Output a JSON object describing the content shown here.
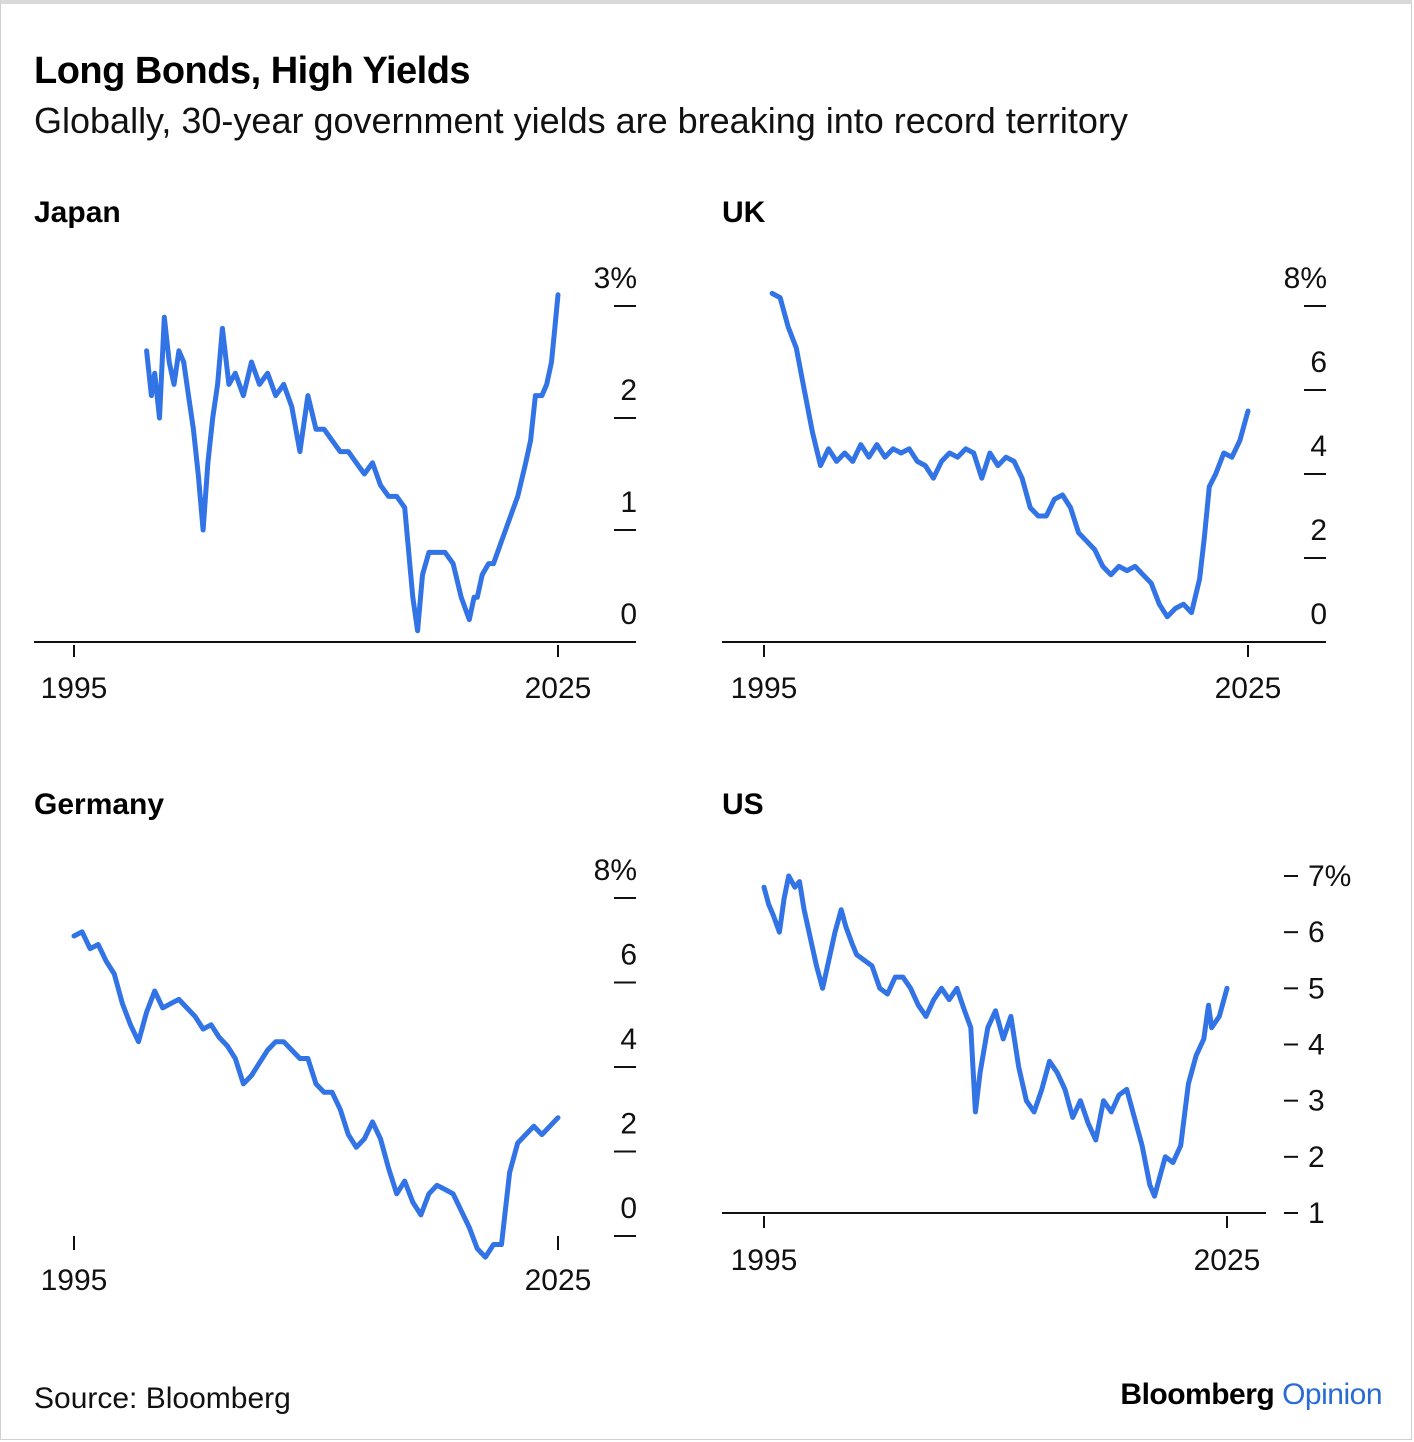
{
  "header": {
    "title": "Long Bonds, High Yields",
    "subtitle": "Globally, 30-year government yields are breaking into record territory"
  },
  "footer": {
    "source": "Source: Bloomberg",
    "brand_main": "Bloomberg",
    "brand_accent": "Opinion"
  },
  "colors": {
    "line": "#3273e6",
    "axis": "#111111",
    "accent": "#2b6bd6"
  },
  "chart_data": [
    {
      "type": "line",
      "title": "Japan",
      "xlabel": "",
      "ylabel": "",
      "xlim": [
        1992.5,
        2030
      ],
      "ylim": [
        0,
        3
      ],
      "x_ticks": [
        1995,
        2025
      ],
      "x_tick_labels": [
        "1995",
        "2025"
      ],
      "y_ticks": [
        0,
        1,
        2,
        3
      ],
      "y_tick_labels": [
        "0",
        "1",
        "2",
        "3%"
      ],
      "unit": "%",
      "series": [
        {
          "name": "Japan 30-year yield",
          "x": [
            1999.5,
            1999.8,
            2000.0,
            2000.3,
            2000.6,
            2000.9,
            2001.2,
            2001.5,
            2001.8,
            2002.1,
            2002.4,
            2002.7,
            2003.0,
            2003.3,
            2003.6,
            2003.9,
            2004.2,
            2004.6,
            2005.0,
            2005.5,
            2006.0,
            2006.5,
            2007.0,
            2007.5,
            2008.0,
            2008.5,
            2009.0,
            2009.5,
            2010.0,
            2010.5,
            2011.0,
            2011.5,
            2012.0,
            2012.5,
            2013.0,
            2013.5,
            2014.0,
            2014.5,
            2015.0,
            2015.5,
            2016.0,
            2016.3,
            2016.6,
            2017.0,
            2017.5,
            2018.0,
            2018.5,
            2019.0,
            2019.5,
            2019.8,
            2020.0,
            2020.3,
            2020.7,
            2021.0,
            2021.5,
            2022.0,
            2022.5,
            2023.0,
            2023.3,
            2023.6,
            2024.0,
            2024.3,
            2024.6,
            2024.8,
            2025.0
          ],
          "values": [
            2.6,
            2.2,
            2.4,
            2.0,
            2.9,
            2.5,
            2.3,
            2.6,
            2.5,
            2.2,
            1.9,
            1.5,
            1.0,
            1.6,
            2.0,
            2.3,
            2.8,
            2.3,
            2.4,
            2.2,
            2.5,
            2.3,
            2.4,
            2.2,
            2.3,
            2.1,
            1.7,
            2.2,
            1.9,
            1.9,
            1.8,
            1.7,
            1.7,
            1.6,
            1.5,
            1.6,
            1.4,
            1.3,
            1.3,
            1.2,
            0.4,
            0.1,
            0.6,
            0.8,
            0.8,
            0.8,
            0.7,
            0.4,
            0.2,
            0.4,
            0.4,
            0.6,
            0.7,
            0.7,
            0.9,
            1.1,
            1.3,
            1.6,
            1.8,
            2.2,
            2.2,
            2.3,
            2.5,
            2.8,
            3.1
          ]
        }
      ]
    },
    {
      "type": "line",
      "title": "UK",
      "xlabel": "",
      "ylabel": "",
      "xlim": [
        1992.5,
        2030
      ],
      "ylim": [
        0,
        8
      ],
      "x_ticks": [
        1995,
        2025
      ],
      "x_tick_labels": [
        "1995",
        "2025"
      ],
      "y_ticks": [
        0,
        2,
        4,
        6,
        8
      ],
      "y_tick_labels": [
        "0",
        "2",
        "4",
        "6",
        "8%"
      ],
      "unit": "%",
      "series": [
        {
          "name": "UK 30-year yield",
          "x": [
            1995.5,
            1996.0,
            1996.5,
            1997.0,
            1997.5,
            1998.0,
            1998.5,
            1999.0,
            1999.5,
            2000.0,
            2000.5,
            2001.0,
            2001.5,
            2002.0,
            2002.5,
            2003.0,
            2003.5,
            2004.0,
            2004.5,
            2005.0,
            2005.5,
            2006.0,
            2006.5,
            2007.0,
            2007.5,
            2008.0,
            2008.5,
            2009.0,
            2009.5,
            2010.0,
            2010.5,
            2011.0,
            2011.5,
            2012.0,
            2012.5,
            2013.0,
            2013.5,
            2014.0,
            2014.5,
            2015.0,
            2015.5,
            2016.0,
            2016.5,
            2017.0,
            2017.5,
            2018.0,
            2018.5,
            2019.0,
            2019.5,
            2020.0,
            2020.5,
            2021.0,
            2021.5,
            2022.0,
            2022.3,
            2022.6,
            2023.0,
            2023.5,
            2024.0,
            2024.5,
            2025.0
          ],
          "values": [
            8.3,
            8.2,
            7.5,
            7.0,
            6.0,
            5.0,
            4.2,
            4.6,
            4.3,
            4.5,
            4.3,
            4.7,
            4.4,
            4.7,
            4.4,
            4.6,
            4.5,
            4.6,
            4.3,
            4.2,
            3.9,
            4.3,
            4.5,
            4.4,
            4.6,
            4.5,
            3.9,
            4.5,
            4.2,
            4.4,
            4.3,
            3.9,
            3.2,
            3.0,
            3.0,
            3.4,
            3.5,
            3.2,
            2.6,
            2.4,
            2.2,
            1.8,
            1.6,
            1.8,
            1.7,
            1.8,
            1.6,
            1.4,
            0.9,
            0.6,
            0.8,
            0.9,
            0.7,
            1.5,
            2.5,
            3.7,
            4.0,
            4.5,
            4.4,
            4.8,
            5.5
          ]
        }
      ]
    },
    {
      "type": "line",
      "title": "Germany",
      "xlabel": "",
      "ylabel": "",
      "xlim": [
        1992.5,
        2030
      ],
      "ylim": [
        -0.7,
        8
      ],
      "x_ticks": [
        1995,
        2025
      ],
      "x_tick_labels": [
        "1995",
        "2025"
      ],
      "y_ticks": [
        0,
        2,
        4,
        6,
        8
      ],
      "y_tick_labels": [
        "0",
        "2",
        "4",
        "6",
        "8%"
      ],
      "unit": "%",
      "series": [
        {
          "name": "Germany 30-year yield",
          "x": [
            1995.0,
            1995.5,
            1996.0,
            1996.5,
            1997.0,
            1997.5,
            1998.0,
            1998.5,
            1999.0,
            1999.5,
            2000.0,
            2000.5,
            2001.0,
            2001.5,
            2002.0,
            2002.5,
            2003.0,
            2003.5,
            2004.0,
            2004.5,
            2005.0,
            2005.5,
            2006.0,
            2006.5,
            2007.0,
            2007.5,
            2008.0,
            2008.5,
            2009.0,
            2009.5,
            2010.0,
            2010.5,
            2011.0,
            2011.5,
            2012.0,
            2012.5,
            2013.0,
            2013.5,
            2014.0,
            2014.5,
            2015.0,
            2015.5,
            2016.0,
            2016.5,
            2017.0,
            2017.5,
            2018.0,
            2018.5,
            2019.0,
            2019.5,
            2020.0,
            2020.5,
            2021.0,
            2021.5,
            2022.0,
            2022.5,
            2023.0,
            2023.5,
            2024.0,
            2024.5,
            2025.0
          ],
          "values": [
            7.1,
            7.2,
            6.8,
            6.9,
            6.5,
            6.2,
            5.5,
            5.0,
            4.6,
            5.3,
            5.8,
            5.4,
            5.5,
            5.6,
            5.4,
            5.2,
            4.9,
            5.0,
            4.7,
            4.5,
            4.2,
            3.6,
            3.8,
            4.1,
            4.4,
            4.6,
            4.6,
            4.4,
            4.2,
            4.2,
            3.6,
            3.4,
            3.4,
            3.0,
            2.4,
            2.1,
            2.3,
            2.7,
            2.3,
            1.6,
            1.0,
            1.3,
            0.8,
            0.5,
            1.0,
            1.2,
            1.1,
            1.0,
            0.6,
            0.2,
            -0.3,
            -0.5,
            -0.2,
            -0.2,
            1.5,
            2.2,
            2.4,
            2.6,
            2.4,
            2.6,
            2.8
          ]
        }
      ]
    },
    {
      "type": "line",
      "title": "US",
      "xlabel": "",
      "ylabel": "",
      "xlim": [
        1992.5,
        2027
      ],
      "ylim": [
        1,
        7.3
      ],
      "x_ticks": [
        1995,
        2025
      ],
      "x_tick_labels": [
        "1995",
        "2025"
      ],
      "y_ticks": [
        1,
        2,
        3,
        4,
        5,
        6,
        7
      ],
      "y_tick_labels": [
        "1",
        "2",
        "3",
        "4",
        "5",
        "6",
        "7%"
      ],
      "unit": "%",
      "series": [
        {
          "name": "US 30-year yield",
          "x": [
            1995.0,
            1995.3,
            1995.6,
            1996.0,
            1996.3,
            1996.6,
            1997.0,
            1997.3,
            1997.6,
            1998.0,
            1998.4,
            1998.8,
            1999.2,
            1999.6,
            2000.0,
            2000.3,
            2000.7,
            2001.0,
            2001.5,
            2002.0,
            2002.5,
            2003.0,
            2003.5,
            2004.0,
            2004.5,
            2005.0,
            2005.5,
            2006.0,
            2006.5,
            2007.0,
            2007.5,
            2008.0,
            2008.4,
            2008.7,
            2009.0,
            2009.5,
            2010.0,
            2010.5,
            2011.0,
            2011.5,
            2012.0,
            2012.5,
            2013.0,
            2013.5,
            2014.0,
            2014.5,
            2015.0,
            2015.5,
            2016.0,
            2016.5,
            2017.0,
            2017.5,
            2018.0,
            2018.5,
            2019.0,
            2019.5,
            2020.0,
            2020.3,
            2020.6,
            2021.0,
            2021.5,
            2022.0,
            2022.5,
            2023.0,
            2023.5,
            2023.8,
            2024.0,
            2024.5,
            2025.0
          ],
          "values": [
            6.8,
            6.5,
            6.3,
            6.0,
            6.6,
            7.0,
            6.8,
            6.9,
            6.4,
            5.9,
            5.4,
            5.0,
            5.5,
            6.0,
            6.4,
            6.1,
            5.8,
            5.6,
            5.5,
            5.4,
            5.0,
            4.9,
            5.2,
            5.2,
            5.0,
            4.7,
            4.5,
            4.8,
            5.0,
            4.8,
            5.0,
            4.6,
            4.3,
            2.8,
            3.5,
            4.3,
            4.6,
            4.1,
            4.5,
            3.6,
            3.0,
            2.8,
            3.2,
            3.7,
            3.5,
            3.2,
            2.7,
            3.0,
            2.6,
            2.3,
            3.0,
            2.8,
            3.1,
            3.2,
            2.7,
            2.2,
            1.5,
            1.3,
            1.6,
            2.0,
            1.9,
            2.2,
            3.3,
            3.8,
            4.1,
            4.7,
            4.3,
            4.5,
            5.0
          ]
        }
      ]
    }
  ]
}
